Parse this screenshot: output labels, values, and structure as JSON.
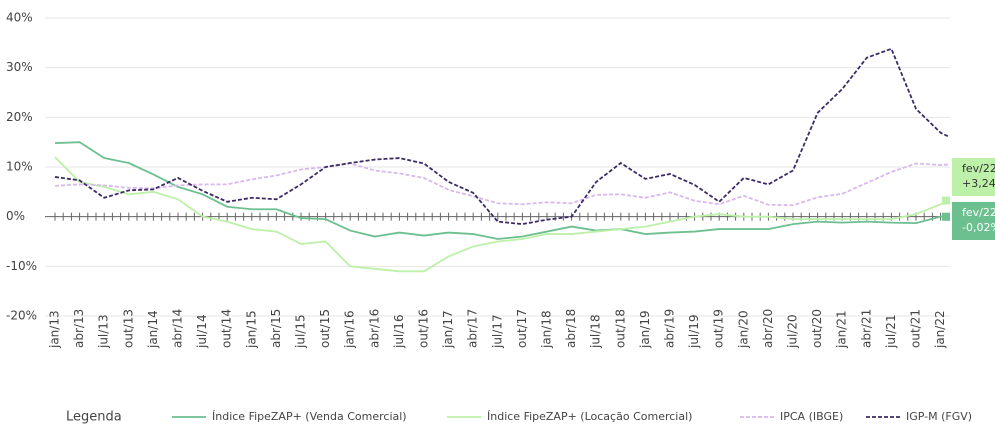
{
  "chart_data": {
    "type": "line",
    "categories": [
      "jan/13",
      "abr/13",
      "jul/13",
      "out/13",
      "jan/14",
      "abr/14",
      "jul/14",
      "out/14",
      "jan/15",
      "abr/15",
      "jul/15",
      "out/15",
      "jan/16",
      "abr/16",
      "jul/16",
      "out/16",
      "jan/17",
      "abr/17",
      "jul/17",
      "out/17",
      "jan/18",
      "abr/18",
      "jul/18",
      "out/18",
      "jan/19",
      "abr/19",
      "jul/19",
      "out/19",
      "jan/20",
      "abr/20",
      "jul/20",
      "out/20",
      "jan/21",
      "abr/21",
      "jul/21",
      "out/21",
      "jan/22",
      null
    ],
    "series": [
      {
        "name": "Índice FipeZAP+ (Venda Comercial)",
        "color": "#6cbf8f",
        "dashed": false,
        "values": [
          14.8,
          15.0,
          11.8,
          10.8,
          8.5,
          6.0,
          4.5,
          2.0,
          1.5,
          1.5,
          -0.3,
          -0.5,
          -2.8,
          -4.0,
          -3.2,
          -3.8,
          -3.2,
          -3.5,
          -4.5,
          -4.0,
          -3.0,
          -2.0,
          -2.8,
          -2.5,
          -3.5,
          -3.2,
          -3.0,
          -2.5,
          -2.5,
          -2.5,
          -1.5,
          -1.0,
          -1.2,
          -1.0,
          -1.2,
          -1.3,
          0.0,
          -0.02
        ]
      },
      {
        "name": "Índice FipeZAP+ (Locação Comercial)",
        "color": "#bdf0a8",
        "dashed": false,
        "values": [
          12,
          7,
          6,
          4.5,
          5,
          3.5,
          0,
          -1,
          -2.5,
          -3,
          -5.5,
          -5,
          -10,
          -10.5,
          -11,
          -11,
          -8,
          -6,
          -5,
          -4.5,
          -3.5,
          -3.5,
          -3,
          -2.5,
          -2,
          -1,
          0,
          0.5,
          0,
          0,
          -0.5,
          -0.5,
          -0.5,
          -0.5,
          -0.5,
          0.5,
          2.5,
          3.24
        ]
      },
      {
        "name": "IPCA (IBGE)",
        "color": "#d9b8ee",
        "dashed": true,
        "values": [
          6.2,
          6.5,
          6.3,
          5.8,
          5.7,
          6.3,
          6.5,
          6.5,
          7.5,
          8.3,
          9.5,
          10.0,
          10.7,
          9.3,
          8.7,
          7.8,
          5.4,
          4.1,
          2.7,
          2.5,
          2.9,
          2.7,
          4.4,
          4.5,
          3.8,
          4.9,
          3.2,
          2.5,
          4.2,
          2.4,
          2.3,
          3.9,
          4.6,
          6.8,
          9.0,
          10.7,
          10.4,
          10.5
        ]
      },
      {
        "name": "IGP-M (FGV)",
        "color": "#3d2b66",
        "dashed": true,
        "values": [
          8.0,
          7.3,
          3.8,
          5.3,
          5.5,
          7.8,
          5.2,
          3.0,
          3.8,
          3.5,
          6.5,
          10.0,
          10.8,
          11.5,
          11.8,
          10.7,
          7.0,
          4.8,
          -1.0,
          -1.5,
          -0.6,
          0.0,
          7.0,
          10.8,
          7.6,
          8.6,
          6.4,
          3.0,
          7.8,
          6.5,
          9.3,
          20.9,
          25.7,
          32.0,
          33.8,
          21.7,
          16.9,
          16.1
        ]
      }
    ],
    "ylim": [
      -20,
      40
    ],
    "yticks": [
      {
        "value": -20,
        "label": "-20%"
      },
      {
        "value": -10,
        "label": "-10%"
      },
      {
        "value": 0,
        "label": "0%"
      },
      {
        "value": 10,
        "label": "10%"
      },
      {
        "value": 20,
        "label": "20%"
      },
      {
        "value": 30,
        "label": "30%"
      },
      {
        "value": 40,
        "label": "40%"
      }
    ],
    "grid": true,
    "legend_title": "Legenda",
    "annotations": [
      [
        "fev/22",
        "+3,24%"
      ],
      [
        "fev/22",
        "-0,02%"
      ]
    ]
  }
}
